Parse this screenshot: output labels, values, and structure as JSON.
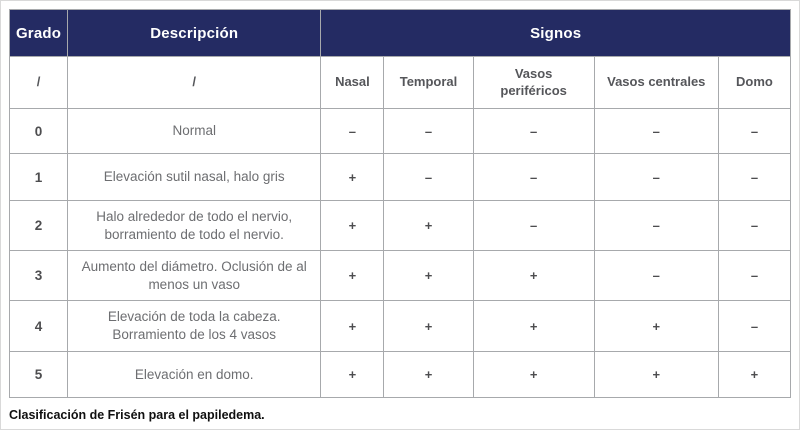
{
  "colors": {
    "header_bg": "#242b63",
    "header_text": "#ffffff",
    "subheader_text": "#55565a",
    "body_text": "#6d6e71",
    "border": "#a7a9ac",
    "caption_text": "#101010"
  },
  "table": {
    "header": {
      "grado": "Grado",
      "descripcion": "Descripción",
      "signos": "Signos"
    },
    "subheader": {
      "grado": "/",
      "descripcion": "/",
      "columns": [
        "Nasal",
        "Temporal",
        "Vasos periféricos",
        "Vasos centrales",
        "Domo"
      ]
    },
    "rows": [
      {
        "grade": "0",
        "description": "Normal",
        "signs": [
          "–",
          "–",
          "–",
          "–",
          "–"
        ]
      },
      {
        "grade": "1",
        "description": "Elevación sutil nasal, halo gris",
        "signs": [
          "+",
          "–",
          "–",
          "–",
          "–"
        ]
      },
      {
        "grade": "2",
        "description": "Halo alrededor de todo el nervio, borramiento de todo el nervio.",
        "signs": [
          "+",
          "+",
          "–",
          "–",
          "–"
        ]
      },
      {
        "grade": "3",
        "description": "Aumento del diámetro. Oclusión de al menos un vaso",
        "signs": [
          "+",
          "+",
          "+",
          "–",
          "–"
        ]
      },
      {
        "grade": "4",
        "description": "Elevación de toda la cabeza. Borramiento de los 4 vasos",
        "signs": [
          "+",
          "+",
          "+",
          "+",
          "–"
        ]
      },
      {
        "grade": "5",
        "description": "Elevación en domo.",
        "signs": [
          "+",
          "+",
          "+",
          "+",
          "+"
        ]
      }
    ]
  },
  "caption": "Clasificación de Frisén para el papiledema."
}
